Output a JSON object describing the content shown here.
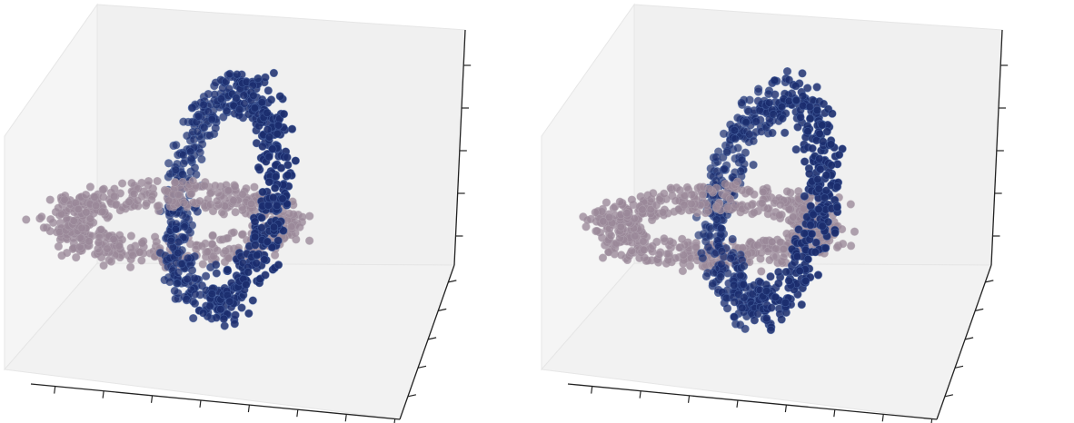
{
  "chart_data": [
    {
      "type": "scatter",
      "projection": "3d",
      "title": "",
      "xlabel": "",
      "ylabel": "",
      "zlabel": "",
      "tick_labels": "none",
      "grid": false,
      "legend": "none",
      "xlim": [
        -1.5,
        2.5
      ],
      "ylim": [
        -1.5,
        1.5
      ],
      "zlim": [
        -1.2,
        1.2
      ],
      "series": [
        {
          "color": "#9a8898",
          "shape": "ring",
          "center": [
            0,
            0,
            0
          ],
          "plane": "xy",
          "major_radius": 1.0,
          "minor_radius": 0.25,
          "n_points": 650
        },
        {
          "color": "#1b2d6e",
          "shape": "ring",
          "center": [
            1.0,
            0,
            0
          ],
          "plane": "xz",
          "major_radius": 1.0,
          "minor_radius": 0.25,
          "n_points": 650
        }
      ]
    },
    {
      "type": "scatter",
      "projection": "3d",
      "title": "",
      "xlabel": "",
      "ylabel": "",
      "zlabel": "",
      "tick_labels": "none",
      "grid": false,
      "legend": "none",
      "xlim": [
        -1.5,
        2.5
      ],
      "ylim": [
        -1.5,
        1.5
      ],
      "zlim": [
        -1.2,
        1.2
      ],
      "series": [
        {
          "color": "#9a8898",
          "shape": "ring",
          "center": [
            0,
            0,
            0
          ],
          "plane": "xy",
          "major_radius": 1.0,
          "minor_radius": 0.25,
          "n_points": 650
        },
        {
          "color": "#1b2d6e",
          "shape": "ring",
          "center": [
            1.0,
            0,
            0
          ],
          "plane": "xz",
          "major_radius": 1.0,
          "minor_radius": 0.25,
          "n_points": 650
        }
      ]
    }
  ]
}
